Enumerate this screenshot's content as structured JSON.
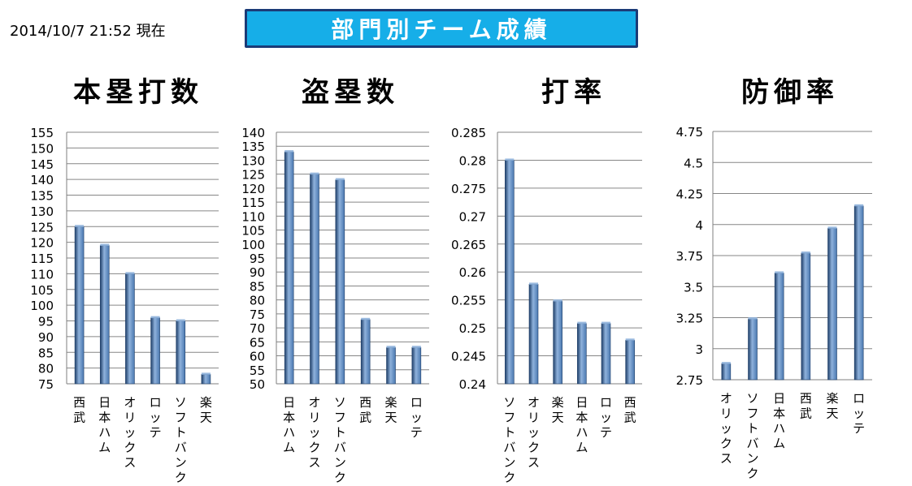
{
  "header": {
    "timestamp": "2014/10/7  21:52 現在",
    "title": "部門別チーム成績"
  },
  "colors": {
    "bar_dark": "#1f3f69",
    "bar_mid": "#4a78b0",
    "bar_light": "#8fb2dc",
    "grid": "#868686",
    "banner_bg": "#16aee8",
    "banner_border": "#1b3b77"
  },
  "chart_data": [
    {
      "type": "bar",
      "title": "本塁打数",
      "categories": [
        "西武",
        "日本ハム",
        "オリックス",
        "ロッテ",
        "ソフトバンク",
        "楽天"
      ],
      "values": [
        125,
        119,
        110,
        96,
        95,
        78
      ],
      "ylim": [
        75,
        155
      ],
      "yticks": [
        "155",
        "150",
        "145",
        "140",
        "135",
        "130",
        "125",
        "120",
        "115",
        "110",
        "105",
        "100",
        "95",
        "90",
        "85",
        "80",
        "75"
      ],
      "grid": true
    },
    {
      "type": "bar",
      "title": "盗塁数",
      "categories": [
        "日本ハム",
        "オリックス",
        "ソフトバンク",
        "西武",
        "楽天",
        "ロッテ"
      ],
      "values": [
        133,
        125,
        123,
        73,
        63,
        63
      ],
      "ylim": [
        50,
        140
      ],
      "yticks": [
        "140",
        "135",
        "130",
        "125",
        "120",
        "115",
        "110",
        "105",
        "100",
        "95",
        "90",
        "85",
        "80",
        "75",
        "70",
        "65",
        "60",
        "55",
        "50"
      ],
      "grid": true
    },
    {
      "type": "bar",
      "title": "打率",
      "categories": [
        "ソフトバンク",
        "オリックス",
        "楽天",
        "日本ハム",
        "ロッテ",
        "西武"
      ],
      "values": [
        0.28,
        0.2578,
        0.2548,
        0.2508,
        0.2508,
        0.2478
      ],
      "ylim": [
        0.24,
        0.285
      ],
      "yticks": [
        "0.285",
        "0.28",
        "0.275",
        "0.27",
        "0.265",
        "0.26",
        "0.255",
        "0.25",
        "0.245",
        "0.24"
      ],
      "grid": true
    },
    {
      "type": "bar",
      "title": "防御率",
      "categories": [
        "オリックス",
        "ソフトバンク",
        "日本ハム",
        "西武",
        "楽天",
        "ロッテ"
      ],
      "values": [
        2.88,
        3.24,
        3.61,
        3.77,
        3.97,
        4.15
      ],
      "ylim": [
        2.75,
        4.75
      ],
      "yticks": [
        "4.75",
        "4.5",
        "4.25",
        "4",
        "3.75",
        "3.5",
        "3.25",
        "3",
        "2.75"
      ],
      "grid": true
    }
  ]
}
